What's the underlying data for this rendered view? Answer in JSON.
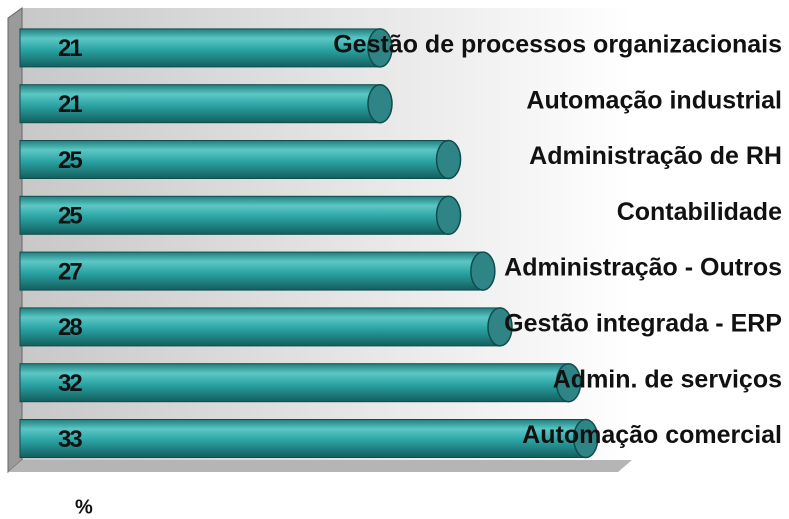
{
  "chart_data": {
    "type": "bar",
    "orientation": "horizontal",
    "categories": [
      "Gestão de processos organizacionais",
      "Automação industrial",
      "Administração de RH",
      "Contabilidade",
      "Administração - Outros",
      "Gestão integrada - ERP",
      "Admin. de serviços",
      "Automação comercial"
    ],
    "values": [
      21,
      21,
      25,
      25,
      27,
      28,
      32,
      33
    ],
    "color": "#2aa3a3",
    "xlim": [
      0,
      35
    ],
    "x_label": "%"
  }
}
